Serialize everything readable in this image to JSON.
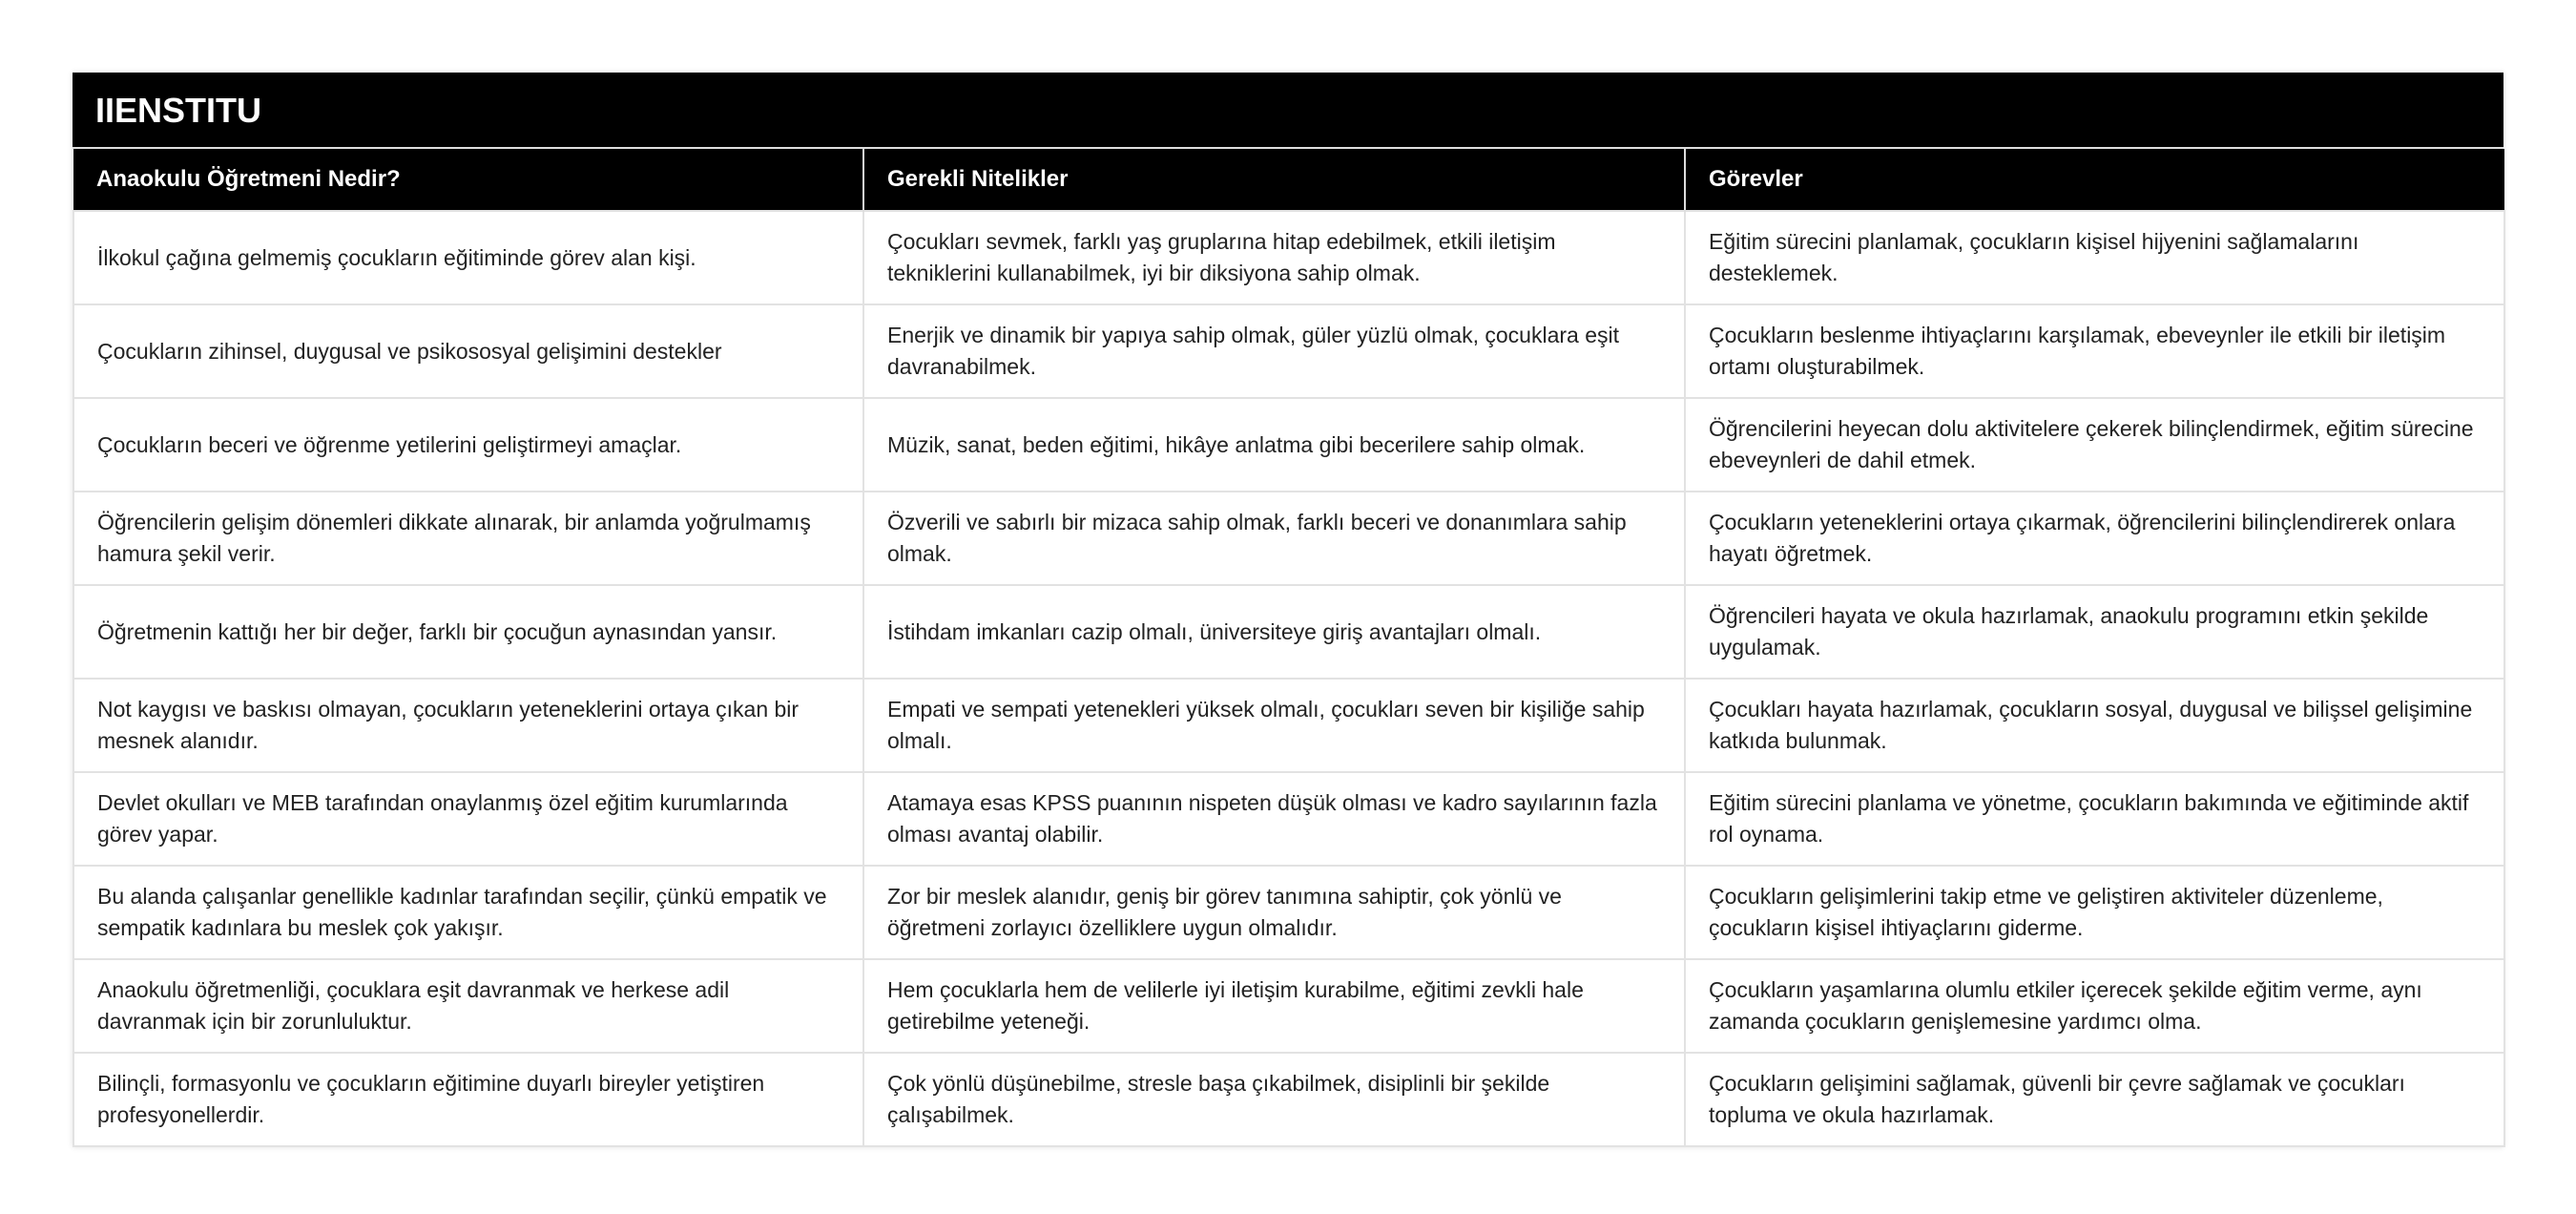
{
  "title": "IIENSTITU",
  "columns": [
    "Anaokulu Öğretmeni Nedir?",
    "Gerekli Nitelikler",
    "Görevler"
  ],
  "rows": [
    [
      "İlkokul çağına gelmemiş çocukların eğitiminde görev alan kişi.",
      "Çocukları sevmek, farklı yaş gruplarına hitap edebilmek, etkili iletişim tekniklerini kullanabilmek, iyi bir diksiyona sahip olmak.",
      "Eğitim sürecini planlamak, çocukların kişisel hijyenini sağlamalarını desteklemek."
    ],
    [
      "Çocukların zihinsel, duygusal ve psikososyal gelişimini destekler",
      "Enerjik ve dinamik bir yapıya sahip olmak, güler yüzlü olmak, çocuklara eşit davranabilmek.",
      "Çocukların beslenme ihtiyaçlarını karşılamak, ebeveynler ile etkili bir iletişim ortamı oluşturabilmek."
    ],
    [
      "Çocukların beceri ve öğrenme yetilerini geliştirmeyi amaçlar.",
      "Müzik, sanat, beden eğitimi, hikâye anlatma gibi becerilere sahip olmak.",
      "Öğrencilerini heyecan dolu aktivitelere çekerek bilinçlendirmek, eğitim sürecine ebeveynleri de dahil etmek."
    ],
    [
      "Öğrencilerin gelişim dönemleri dikkate alınarak, bir anlamda yoğrulmamış hamura şekil verir.",
      "Özverili ve sabırlı bir mizaca sahip olmak, farklı beceri ve donanımlara sahip olmak.",
      "Çocukların yeteneklerini ortaya çıkarmak, öğrencilerini bilinçlendirerek onlara hayatı öğretmek."
    ],
    [
      "Öğretmenin kattığı her bir değer, farklı bir çocuğun aynasından yansır.",
      "İstihdam imkanları cazip olmalı, üniversiteye giriş avantajları olmalı.",
      "Öğrencileri hayata ve okula hazırlamak, anaokulu programını etkin şekilde uygulamak."
    ],
    [
      "Not kaygısı ve baskısı olmayan, çocukların yeteneklerini ortaya çıkan bir mesnek alanıdır.",
      "Empati ve sempati yetenekleri yüksek olmalı, çocukları seven bir kişiliğe sahip olmalı.",
      "Çocukları hayata hazırlamak, çocukların sosyal, duygusal ve bilişsel gelişimine katkıda bulunmak."
    ],
    [
      "Devlet okulları ve MEB tarafından onaylanmış özel eğitim kurumlarında görev yapar.",
      "Atamaya esas KPSS puanının nispeten düşük olması ve kadro sayılarının fazla olması avantaj olabilir.",
      "Eğitim sürecini planlama ve yönetme, çocukların bakımında ve eğitiminde aktif rol oynama."
    ],
    [
      "Bu alanda çalışanlar genellikle kadınlar tarafından seçilir, çünkü empatik ve sempatik kadınlara bu meslek çok yakışır.",
      "Zor bir meslek alanıdır, geniş bir görev tanımına sahiptir, çok yönlü ve öğretmeni zorlayıcı özelliklere uygun olmalıdır.",
      "Çocukların gelişimlerini takip etme ve geliştiren aktiviteler düzenleme, çocukların kişisel ihtiyaçlarını giderme."
    ],
    [
      "Anaokulu öğretmenliği, çocuklara eşit davranmak ve herkese adil davranmak için bir zorunluluktur.",
      "Hem çocuklarla hem de velilerle iyi iletişim kurabilme, eğitimi zevkli hale getirebilme yeteneği.",
      "Çocukların yaşamlarına olumlu etkiler içerecek şekilde eğitim verme, aynı zamanda çocukların genişlemesine yardımcı olma."
    ],
    [
      "Bilinçli, formasyonlu ve çocukların eğitimine duyarlı bireyler yetiştiren profesyonellerdir.",
      "Çok yönlü düşünebilme, stresle başa çıkabilmek, disiplinli bir şekilde çalışabilmek.",
      "Çocukların gelişimini sağlamak, güvenli bir çevre sağlamak ve çocukları topluma ve okula hazırlamak."
    ]
  ]
}
